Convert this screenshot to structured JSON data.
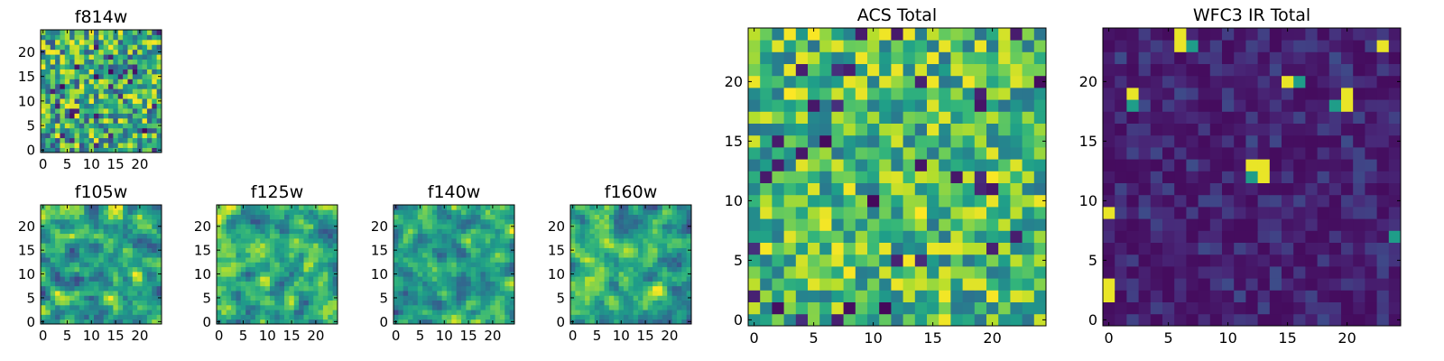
{
  "chart_data": [
    {
      "type": "heatmap",
      "title": "f814w",
      "cmap": "viridis",
      "x_ticks": [
        "0",
        "5",
        "10",
        "15",
        "20"
      ],
      "y_ticks": [
        "0",
        "5",
        "10",
        "15",
        "20"
      ],
      "xlim": [
        0,
        25
      ],
      "ylim": [
        0,
        25
      ],
      "grid": false,
      "seed": 11,
      "gen": {
        "mode": "uniform",
        "min": 0.2,
        "max": 1.0
      }
    },
    {
      "type": "heatmap",
      "title": "f105w",
      "cmap": "viridis",
      "x_ticks": [
        "0",
        "5",
        "10",
        "15",
        "20"
      ],
      "y_ticks": [
        "0",
        "5",
        "10",
        "15",
        "20"
      ],
      "xlim": [
        0,
        25
      ],
      "ylim": [
        0,
        25
      ],
      "grid": false,
      "seed": 23,
      "gen": {
        "mode": "smooth",
        "min": 0.2,
        "max": 1.0
      }
    },
    {
      "type": "heatmap",
      "title": "f125w",
      "cmap": "viridis",
      "x_ticks": [
        "0",
        "5",
        "10",
        "15",
        "20"
      ],
      "y_ticks": [
        "0",
        "5",
        "10",
        "15",
        "20"
      ],
      "xlim": [
        0,
        25
      ],
      "ylim": [
        0,
        25
      ],
      "grid": false,
      "seed": 37,
      "gen": {
        "mode": "smooth",
        "min": 0.25,
        "max": 1.0
      }
    },
    {
      "type": "heatmap",
      "title": "f140w",
      "cmap": "viridis",
      "x_ticks": [
        "0",
        "5",
        "10",
        "15",
        "20"
      ],
      "y_ticks": [
        "0",
        "5",
        "10",
        "15",
        "20"
      ],
      "xlim": [
        0,
        25
      ],
      "ylim": [
        0,
        25
      ],
      "grid": false,
      "seed": 41,
      "gen": {
        "mode": "smooth",
        "min": 0.2,
        "max": 1.0
      }
    },
    {
      "type": "heatmap",
      "title": "f160w",
      "cmap": "viridis",
      "x_ticks": [
        "0",
        "5",
        "10",
        "15",
        "20"
      ],
      "y_ticks": [
        "0",
        "5",
        "10",
        "15",
        "20"
      ],
      "xlim": [
        0,
        25
      ],
      "ylim": [
        0,
        25
      ],
      "grid": false,
      "seed": 53,
      "gen": {
        "mode": "smooth",
        "min": 0.2,
        "max": 1.0
      }
    },
    {
      "type": "heatmap",
      "title": "ACS Total",
      "cmap": "viridis",
      "x_ticks": [
        "0",
        "5",
        "10",
        "15",
        "20"
      ],
      "y_ticks": [
        "0",
        "5",
        "10",
        "15",
        "20"
      ],
      "xlim": [
        0,
        25
      ],
      "ylim": [
        0,
        25
      ],
      "grid": false,
      "seed": 67,
      "gen": {
        "mode": "uniform",
        "min": 0.35,
        "max": 1.0
      }
    },
    {
      "type": "heatmap",
      "title": "WFC3 IR Total",
      "cmap": "viridis",
      "x_ticks": [
        "0",
        "5",
        "10",
        "15",
        "20"
      ],
      "y_ticks": [
        "0",
        "5",
        "10",
        "15",
        "20"
      ],
      "xlim": [
        0,
        25
      ],
      "ylim": [
        0,
        25
      ],
      "grid": false,
      "seed": 79,
      "gen": {
        "mode": "sparse",
        "min": 0.0,
        "max": 1.0
      },
      "hot_cells": [
        [
          6,
          24
        ],
        [
          6,
          23
        ],
        [
          7,
          23
        ],
        [
          2,
          19
        ],
        [
          15,
          20
        ],
        [
          16,
          20
        ],
        [
          20,
          19
        ],
        [
          20,
          18
        ],
        [
          19,
          18
        ],
        [
          12,
          13
        ],
        [
          13,
          13
        ],
        [
          12,
          12
        ],
        [
          13,
          12
        ],
        [
          0,
          9
        ],
        [
          24,
          7
        ],
        [
          0,
          3
        ],
        [
          0,
          2
        ],
        [
          2,
          18
        ],
        [
          23,
          23
        ]
      ]
    }
  ]
}
